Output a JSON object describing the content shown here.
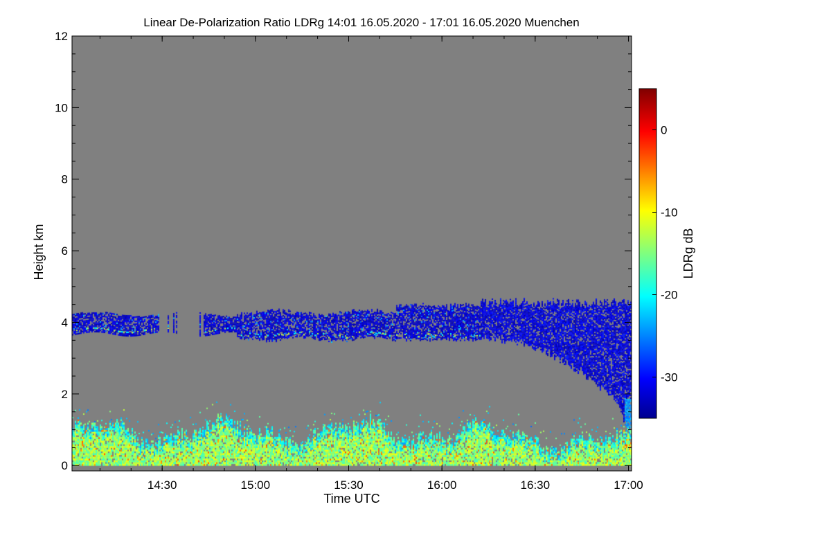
{
  "chart_data": {
    "type": "heatmap",
    "title": "Linear De-Polarization Ratio LDRg   14:01 16.05.2020 - 17:01 16.05.2020 Muenchen",
    "xlabel": "Time UTC",
    "ylabel": "Height km",
    "x_range_hours": [
      14.0167,
      17.0167
    ],
    "x_ticks": [
      {
        "value": 14.5,
        "label": "14:30"
      },
      {
        "value": 15.0,
        "label": "15:00"
      },
      {
        "value": 15.5,
        "label": "15:30"
      },
      {
        "value": 16.0,
        "label": "16:00"
      },
      {
        "value": 16.5,
        "label": "16:30"
      },
      {
        "value": 17.0,
        "label": "17:00"
      }
    ],
    "y_range_km": [
      -0.15,
      12.0
    ],
    "y_ticks": [
      {
        "value": 0,
        "label": "0"
      },
      {
        "value": 2,
        "label": "2"
      },
      {
        "value": 4,
        "label": "4"
      },
      {
        "value": 6,
        "label": "6"
      },
      {
        "value": 8,
        "label": "8"
      },
      {
        "value": 10,
        "label": "10"
      },
      {
        "value": 12,
        "label": "12"
      }
    ],
    "colorbar": {
      "label": "LDRg dB",
      "range": [
        -35,
        5
      ],
      "ticks": [
        {
          "value": 0,
          "label": "0"
        },
        {
          "value": -10,
          "label": "-10"
        },
        {
          "value": -20,
          "label": "-20"
        },
        {
          "value": -30,
          "label": "-30"
        }
      ]
    },
    "background_color": "#808080",
    "regions": [
      {
        "name": "boundary-layer",
        "time_start": 14.0167,
        "time_end": 17.0167,
        "base_km": 0.0,
        "top_km": 1.2,
        "ldr_db_range": [
          -20,
          -5
        ],
        "dominant": "yellow-green"
      },
      {
        "name": "mid-level-cloud",
        "time_start": 14.0167,
        "time_end": 16.2,
        "base_km": 3.6,
        "top_km": 4.5,
        "ldr_db_range": [
          -35,
          -25
        ],
        "dominant": "blue"
      },
      {
        "name": "virga-fallstreak",
        "time_start": 16.2,
        "time_end": 17.0167,
        "base_km": 1.2,
        "top_km": 4.7,
        "ldr_db_range": [
          -35,
          -25
        ],
        "dominant": "blue"
      }
    ]
  }
}
